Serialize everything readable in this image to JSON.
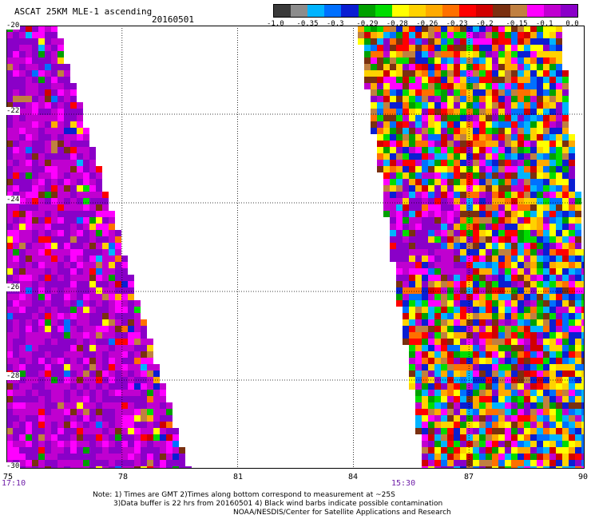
{
  "header": {
    "title": "ASCAT 25KM MLE-1 ascending",
    "date": "20160501"
  },
  "colorbar": {
    "colors": [
      "#3a3a3a",
      "#8c8c8c",
      "#00b4ff",
      "#0070ff",
      "#0a1ed2",
      "#00a000",
      "#00dc00",
      "#ffff00",
      "#ffd200",
      "#ffaa00",
      "#ff7000",
      "#ff0000",
      "#d00000",
      "#7a3010",
      "#c08040",
      "#ff00ff",
      "#c000d0",
      "#8a00c8"
    ],
    "labels": [
      "-1.0",
      "-0.35",
      "-0.3",
      "-0.29",
      "-0.28",
      "-0.26",
      "-0.23",
      "-0.2",
      "-0.15",
      "-0.1",
      "0.0"
    ]
  },
  "map": {
    "lat_min": -30,
    "lat_max": -20,
    "lon_min": 75,
    "lon_max": 90,
    "y_ticks": [
      "-20",
      "-22",
      "-24",
      "-26",
      "-28",
      "-30"
    ],
    "x_ticks": [
      "75",
      "78",
      "81",
      "84",
      "87",
      "90"
    ],
    "grid": true,
    "swaths": [
      {
        "time": "17:10",
        "dominant": "purple"
      },
      {
        "time": "15:30",
        "dominant": "mixed"
      }
    ]
  },
  "notes": {
    "line1": "Note: 1) Times are GMT 2)Times along bottom correspond to measurement at ~25S",
    "line2": "3)Data buffer is 22 hrs from 20160501 4) Black wind barbs indicate possible contamination",
    "line3": "NOAA/NESDIS/Center for Satellite Applications and Research"
  }
}
